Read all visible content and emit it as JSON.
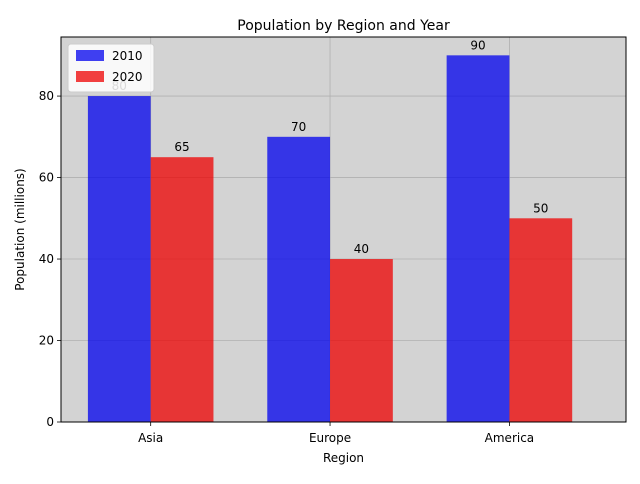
{
  "chart_data": {
    "type": "bar",
    "title": "Population by Region and Year",
    "xlabel": "Region",
    "ylabel": "Population (millions)",
    "categories": [
      "Asia",
      "Europe",
      "America"
    ],
    "series": [
      {
        "name": "2010",
        "values": [
          80,
          70,
          90
        ],
        "color": "#0000ee",
        "opacity": 0.75
      },
      {
        "name": "2020",
        "values": [
          65,
          40,
          50
        ],
        "color": "#ee0000",
        "opacity": 0.75
      }
    ],
    "ylim": [
      0,
      94.5
    ],
    "yticks": [
      0,
      20,
      40,
      60,
      80
    ],
    "grid": true,
    "legend_position": "top-left",
    "background_color": "#d3d3d3"
  }
}
